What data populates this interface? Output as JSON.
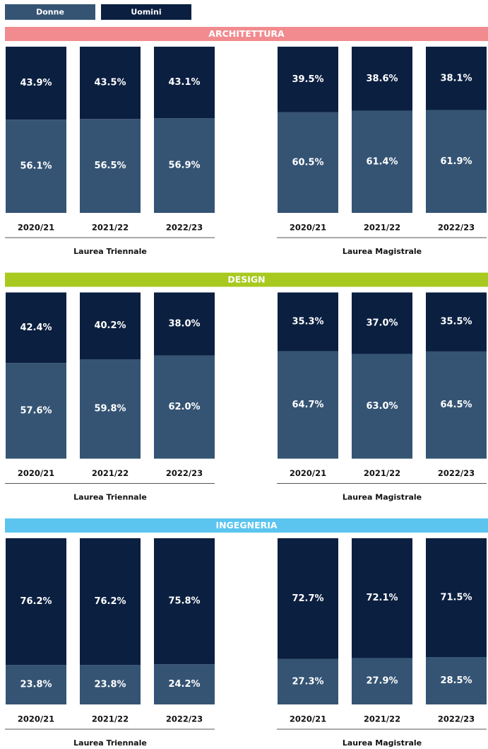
{
  "sections": [
    {
      "title": "ARCHITETTURA",
      "color": "#f28b8f"
    },
    {
      "title": "DESIGN",
      "color": "#a8c91f"
    },
    {
      "title": "INGEGNERIA",
      "color": "#5bc5f0"
    }
  ],
  "chart_data": [
    {
      "type": "stacked_bar",
      "title": "Laurea Triennale",
      "categories": [
        "2020/21",
        "2021/22",
        "2022/23"
      ],
      "ylim": [
        0,
        100
      ],
      "series": [
        {
          "name": "Donne",
          "color": "#355474",
          "values": [
            56.1,
            56.5,
            56.9
          ],
          "value_labels": [
            "56.1%",
            "56.5%",
            "56.9%"
          ]
        },
        {
          "name": "Uomini",
          "color": "#0b1f40",
          "values": [
            43.9,
            43.5,
            43.1
          ],
          "value_labels": [
            "43.9%",
            "43.5%",
            "43.1%"
          ]
        }
      ]
    },
    {
      "type": "stacked_bar",
      "title": "Laurea Magistrale",
      "categories": [
        "2020/21",
        "2021/22",
        "2022/23"
      ],
      "ylim": [
        0,
        100
      ],
      "series": [
        {
          "name": "Donne",
          "color": "#355474",
          "values": [
            60.5,
            61.4,
            61.9
          ],
          "value_labels": [
            "60.5%",
            "61.4%",
            "61.9%"
          ]
        },
        {
          "name": "Uomini",
          "color": "#0b1f40",
          "values": [
            39.5,
            38.6,
            38.1
          ],
          "value_labels": [
            "39.5%",
            "38.6%",
            "38.1%"
          ]
        }
      ]
    },
    {
      "type": "stacked_bar",
      "title": "Laurea Triennale",
      "categories": [
        "2020/21",
        "2021/22",
        "2022/23"
      ],
      "ylim": [
        0,
        100
      ],
      "series": [
        {
          "name": "Donne",
          "color": "#355474",
          "values": [
            57.6,
            59.8,
            62.0
          ],
          "value_labels": [
            "57.6%",
            "59.8%",
            "62.0%"
          ]
        },
        {
          "name": "Uomini",
          "color": "#0b1f40",
          "values": [
            42.4,
            40.2,
            38.0
          ],
          "value_labels": [
            "42.4%",
            "40.2%",
            "38.0%"
          ]
        }
      ]
    },
    {
      "type": "stacked_bar",
      "title": "Laurea Magistrale",
      "categories": [
        "2020/21",
        "2021/22",
        "2022/23"
      ],
      "ylim": [
        0,
        100
      ],
      "series": [
        {
          "name": "Donne",
          "color": "#355474",
          "values": [
            64.7,
            63.0,
            64.5
          ],
          "value_labels": [
            "64.7%",
            "63.0%",
            "64.5%"
          ]
        },
        {
          "name": "Uomini",
          "color": "#0b1f40",
          "values": [
            35.3,
            37.0,
            35.5
          ],
          "value_labels": [
            "35.3%",
            "37.0%",
            "35.5%"
          ]
        }
      ]
    },
    {
      "type": "stacked_bar",
      "title": "Laurea Triennale",
      "categories": [
        "2020/21",
        "2021/22",
        "2022/23"
      ],
      "ylim": [
        0,
        100
      ],
      "series": [
        {
          "name": "Donne",
          "color": "#355474",
          "values": [
            23.8,
            23.8,
            24.2
          ],
          "value_labels": [
            "23.8%",
            "23.8%",
            "24.2%"
          ]
        },
        {
          "name": "Uomini",
          "color": "#0b1f40",
          "values": [
            76.2,
            76.2,
            75.8
          ],
          "value_labels": [
            "76.2%",
            "76.2%",
            "75.8%"
          ]
        }
      ]
    },
    {
      "type": "stacked_bar",
      "title": "Laurea Magistrale",
      "categories": [
        "2020/21",
        "2021/22",
        "2022/23"
      ],
      "ylim": [
        0,
        100
      ],
      "series": [
        {
          "name": "Donne",
          "color": "#355474",
          "values": [
            27.3,
            27.9,
            28.5
          ],
          "value_labels": [
            "27.3%",
            "27.9%",
            "28.5%"
          ]
        },
        {
          "name": "Uomini",
          "color": "#0b1f40",
          "values": [
            72.7,
            72.1,
            71.5
          ],
          "value_labels": [
            "72.7%",
            "72.1%",
            "71.5%"
          ]
        }
      ]
    }
  ]
}
